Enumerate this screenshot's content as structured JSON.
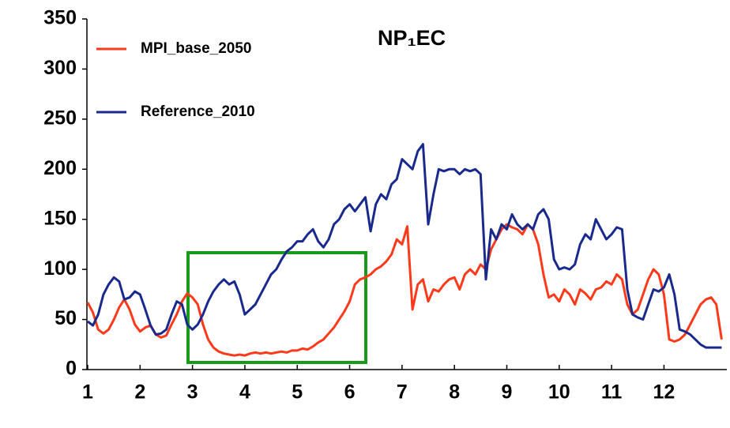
{
  "chart_data": {
    "type": "line",
    "title": "NP₁EC",
    "x": [
      1.0,
      1.1,
      1.2,
      1.3,
      1.4,
      1.5,
      1.6,
      1.7,
      1.8,
      1.9,
      2.0,
      2.1,
      2.2,
      2.3,
      2.4,
      2.5,
      2.6,
      2.7,
      2.8,
      2.9,
      3.0,
      3.1,
      3.2,
      3.3,
      3.4,
      3.5,
      3.6,
      3.7,
      3.8,
      3.9,
      4.0,
      4.1,
      4.2,
      4.3,
      4.4,
      4.5,
      4.6,
      4.7,
      4.8,
      4.9,
      5.0,
      5.1,
      5.2,
      5.3,
      5.4,
      5.5,
      5.6,
      5.7,
      5.8,
      5.9,
      6.0,
      6.1,
      6.2,
      6.3,
      6.4,
      6.5,
      6.6,
      6.7,
      6.8,
      6.9,
      7.0,
      7.1,
      7.2,
      7.3,
      7.4,
      7.5,
      7.6,
      7.7,
      7.8,
      7.9,
      8.0,
      8.1,
      8.2,
      8.3,
      8.4,
      8.5,
      8.6,
      8.7,
      8.8,
      8.9,
      9.0,
      9.1,
      9.2,
      9.3,
      9.4,
      9.5,
      9.6,
      9.7,
      9.8,
      9.9,
      10.0,
      10.1,
      10.2,
      10.3,
      10.4,
      10.5,
      10.6,
      10.7,
      10.8,
      10.9,
      11.0,
      11.1,
      11.2,
      11.3,
      11.4,
      11.5,
      11.6,
      11.7,
      11.8,
      11.9,
      12.0,
      12.1,
      12.2,
      12.3,
      12.4,
      12.5,
      12.6,
      12.7,
      12.8,
      12.9,
      13.0,
      13.1
    ],
    "series": [
      {
        "name": "MPI_base_2050",
        "color": "#ff3a1a",
        "values": [
          67,
          57,
          40,
          36,
          40,
          50,
          62,
          70,
          60,
          45,
          38,
          42,
          44,
          35,
          32,
          34,
          45,
          55,
          68,
          76,
          72,
          65,
          45,
          30,
          22,
          18,
          16,
          15,
          14,
          15,
          14,
          16,
          17,
          16,
          17,
          16,
          17,
          18,
          17,
          19,
          19,
          21,
          20,
          23,
          27,
          30,
          36,
          42,
          50,
          58,
          68,
          85,
          90,
          92,
          95,
          100,
          103,
          108,
          115,
          130,
          125,
          143,
          60,
          85,
          90,
          68,
          80,
          78,
          85,
          90,
          92,
          80,
          95,
          100,
          95,
          105,
          100,
          120,
          130,
          140,
          145,
          142,
          140,
          135,
          145,
          140,
          125,
          95,
          72,
          75,
          68,
          80,
          75,
          65,
          80,
          76,
          70,
          80,
          82,
          88,
          85,
          95,
          90,
          65,
          55,
          60,
          75,
          90,
          100,
          95,
          75,
          30,
          28,
          30,
          35,
          45,
          55,
          65,
          70,
          72,
          65,
          30
        ]
      },
      {
        "name": "Reference_2010",
        "color": "#1a2a8c",
        "values": [
          48,
          44,
          55,
          75,
          85,
          92,
          88,
          70,
          72,
          78,
          75,
          60,
          44,
          35,
          36,
          40,
          55,
          68,
          65,
          45,
          40,
          45,
          55,
          68,
          78,
          85,
          90,
          85,
          88,
          75,
          55,
          60,
          65,
          75,
          85,
          95,
          100,
          110,
          118,
          122,
          128,
          128,
          135,
          140,
          128,
          122,
          130,
          145,
          150,
          160,
          165,
          158,
          165,
          172,
          138,
          165,
          175,
          170,
          185,
          190,
          210,
          205,
          200,
          218,
          225,
          145,
          175,
          200,
          198,
          200,
          200,
          195,
          200,
          198,
          200,
          195,
          90,
          140,
          130,
          145,
          140,
          155,
          145,
          140,
          145,
          140,
          155,
          160,
          150,
          110,
          100,
          102,
          100,
          105,
          125,
          135,
          130,
          150,
          140,
          130,
          135,
          142,
          140,
          80,
          55,
          52,
          50,
          65,
          80,
          78,
          82,
          95,
          75,
          40,
          38,
          35,
          30,
          25,
          22,
          22,
          22,
          22
        ]
      }
    ],
    "xlim": [
      1,
      13.2
    ],
    "xticks": [
      1,
      2,
      3,
      4,
      5,
      6,
      7,
      8,
      9,
      10,
      11,
      12
    ],
    "ylim": [
      0,
      350
    ],
    "yticks": [
      0,
      50,
      100,
      150,
      200,
      250,
      300,
      350
    ],
    "legend": "upper left"
  }
}
